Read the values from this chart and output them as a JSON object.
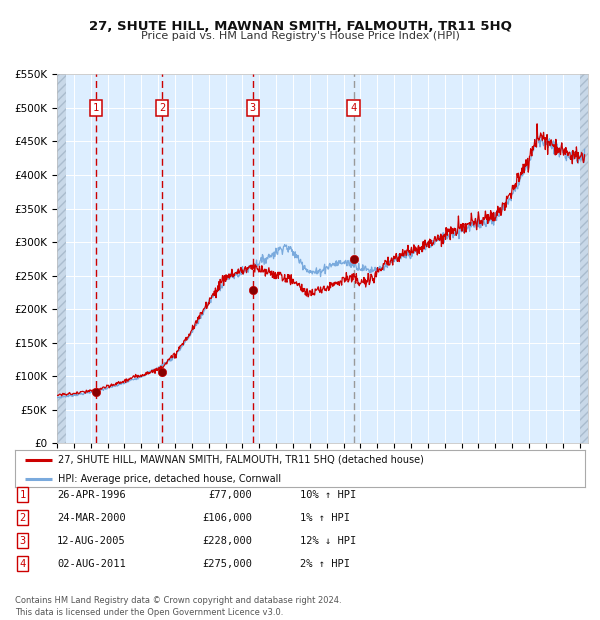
{
  "title": "27, SHUTE HILL, MAWNAN SMITH, FALMOUTH, TR11 5HQ",
  "subtitle": "Price paid vs. HM Land Registry's House Price Index (HPI)",
  "background_color": "#ffffff",
  "plot_bg_color": "#ddeeff",
  "grid_color": "#ffffff",
  "red_line_color": "#cc0000",
  "blue_line_color": "#7aaadd",
  "purchase_dates": [
    1996.32,
    2000.23,
    2005.61,
    2011.59
  ],
  "purchase_prices": [
    77000,
    106000,
    228000,
    275000
  ],
  "purchase_labels": [
    "1",
    "2",
    "3",
    "4"
  ],
  "ylim": [
    0,
    550000
  ],
  "yticks": [
    0,
    50000,
    100000,
    150000,
    200000,
    250000,
    300000,
    350000,
    400000,
    450000,
    500000,
    550000
  ],
  "ytick_labels": [
    "£0",
    "£50K",
    "£100K",
    "£150K",
    "£200K",
    "£250K",
    "£300K",
    "£350K",
    "£400K",
    "£450K",
    "£500K",
    "£550K"
  ],
  "xlim_start": 1994.0,
  "xlim_end": 2025.5,
  "legend_line1": "27, SHUTE HILL, MAWNAN SMITH, FALMOUTH, TR11 5HQ (detached house)",
  "legend_line2": "HPI: Average price, detached house, Cornwall",
  "table_rows": [
    {
      "num": "1",
      "date": "26-APR-1996",
      "price": "£77,000",
      "hpi": "10% ↑ HPI"
    },
    {
      "num": "2",
      "date": "24-MAR-2000",
      "price": "£106,000",
      "hpi": "1% ↑ HPI"
    },
    {
      "num": "3",
      "date": "12-AUG-2005",
      "price": "£228,000",
      "hpi": "12% ↓ HPI"
    },
    {
      "num": "4",
      "date": "02-AUG-2011",
      "price": "£275,000",
      "hpi": "2% ↑ HPI"
    }
  ],
  "footer": "Contains HM Land Registry data © Crown copyright and database right 2024.\nThis data is licensed under the Open Government Licence v3.0."
}
